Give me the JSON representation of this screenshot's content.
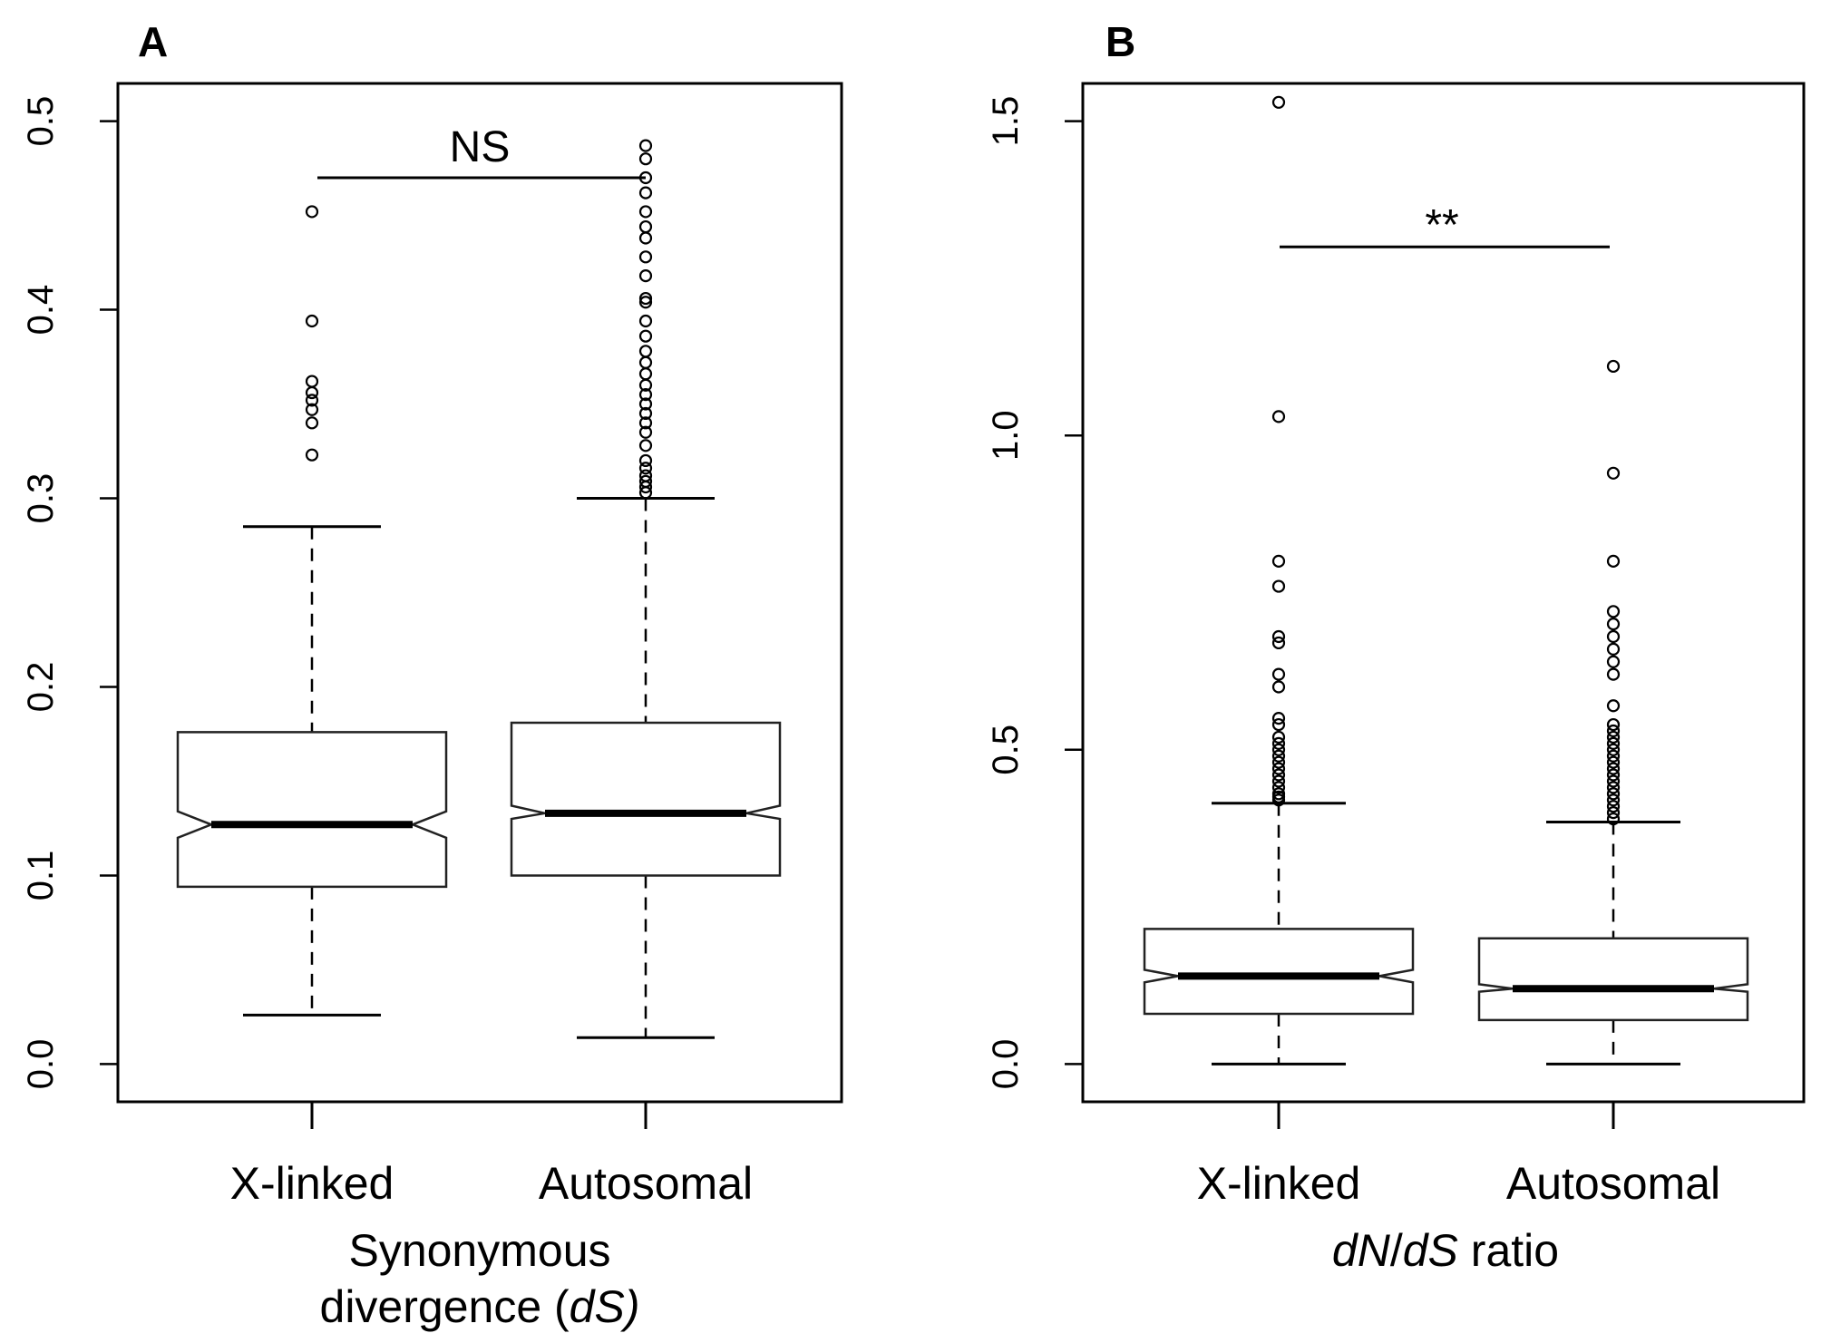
{
  "chart_data": [
    {
      "panel": "A",
      "type": "boxplot",
      "notched": true,
      "categories": [
        "X-linked",
        "Autosomal"
      ],
      "xlabel_line1": "Synonymous",
      "xlabel_line2_prefix": "divergence (",
      "xlabel_line2_italic": "dS)",
      "ylim": [
        -0.02,
        0.52
      ],
      "yticks": [
        0.0,
        0.1,
        0.2,
        0.3,
        0.4,
        0.5
      ],
      "ytick_labels": [
        "0.0",
        "0.1",
        "0.2",
        "0.3",
        "0.4",
        "0.5"
      ],
      "series": [
        {
          "name": "X-linked",
          "whisker_low": 0.026,
          "q1": 0.094,
          "median": 0.127,
          "q3": 0.176,
          "whisker_high": 0.285,
          "notch_low": 0.12,
          "notch_high": 0.134,
          "outliers": [
            0.323,
            0.34,
            0.347,
            0.352,
            0.356,
            0.362,
            0.394,
            0.452
          ]
        },
        {
          "name": "Autosomal",
          "whisker_low": 0.014,
          "q1": 0.1,
          "median": 0.133,
          "q3": 0.181,
          "whisker_high": 0.3,
          "notch_low": 0.13,
          "notch_high": 0.137,
          "outliers": [
            0.303,
            0.306,
            0.309,
            0.312,
            0.316,
            0.32,
            0.328,
            0.335,
            0.34,
            0.345,
            0.35,
            0.355,
            0.36,
            0.366,
            0.372,
            0.378,
            0.386,
            0.394,
            0.404,
            0.406,
            0.418,
            0.428,
            0.438,
            0.444,
            0.452,
            0.462,
            0.47,
            0.48,
            0.487
          ]
        }
      ],
      "significance": {
        "label": "NS",
        "y": 0.47
      }
    },
    {
      "panel": "B",
      "type": "boxplot",
      "notched": true,
      "categories": [
        "X-linked",
        "Autosomal"
      ],
      "xlabel_italic1": "dN",
      "xlabel_sep": "/",
      "xlabel_italic2": "dS",
      "xlabel_rest": " ratio",
      "ylim": [
        -0.06,
        1.56
      ],
      "yticks": [
        0.0,
        0.5,
        1.0,
        1.5
      ],
      "ytick_labels": [
        "0.0",
        "0.5",
        "1.0",
        "1.5"
      ],
      "series": [
        {
          "name": "X-linked",
          "whisker_low": 0.0,
          "q1": 0.08,
          "median": 0.14,
          "q3": 0.215,
          "whisker_high": 0.415,
          "notch_low": 0.13,
          "notch_high": 0.15,
          "outliers": [
            0.42,
            0.425,
            0.43,
            0.44,
            0.45,
            0.46,
            0.47,
            0.48,
            0.49,
            0.5,
            0.51,
            0.52,
            0.54,
            0.55,
            0.6,
            0.62,
            0.67,
            0.68,
            0.76,
            0.8,
            1.03,
            1.53
          ]
        },
        {
          "name": "Autosomal",
          "whisker_low": 0.0,
          "q1": 0.07,
          "median": 0.12,
          "q3": 0.2,
          "whisker_high": 0.385,
          "notch_low": 0.115,
          "notch_high": 0.127,
          "outliers": [
            0.39,
            0.4,
            0.41,
            0.42,
            0.43,
            0.44,
            0.45,
            0.46,
            0.47,
            0.48,
            0.49,
            0.5,
            0.51,
            0.52,
            0.53,
            0.54,
            0.57,
            0.62,
            0.64,
            0.66,
            0.68,
            0.7,
            0.72,
            0.8,
            0.94,
            1.11
          ]
        }
      ],
      "significance": {
        "label": "**",
        "y": 1.3
      }
    }
  ]
}
